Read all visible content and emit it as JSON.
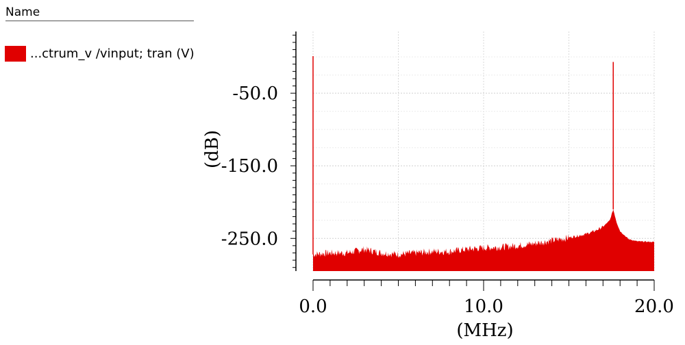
{
  "legend": {
    "header": "Name",
    "items": [
      {
        "label": "...ctrum_v /vinput; tran (V)",
        "color": "#e00000"
      }
    ]
  },
  "chart_data": {
    "type": "area",
    "xlabel": "(MHz)",
    "ylabel": "(dB)",
    "xlim": [
      0,
      20
    ],
    "ylim": [
      -295,
      35
    ],
    "x_ticks": [
      0.0,
      10.0,
      20.0
    ],
    "x_tick_labels": [
      "0.0",
      "10.0",
      "20.0"
    ],
    "y_ticks": [
      -50,
      -150,
      -250
    ],
    "y_tick_labels": [
      "-50.0",
      "-150.0",
      "-250.0"
    ],
    "grid": true,
    "series": [
      {
        "color": "#e00000",
        "noise_floor_points": [
          [
            0.0,
            -272
          ],
          [
            1.0,
            -270
          ],
          [
            2.0,
            -270
          ],
          [
            3.0,
            -265
          ],
          [
            4.0,
            -270
          ],
          [
            5.0,
            -272
          ],
          [
            6.0,
            -270
          ],
          [
            7.0,
            -268
          ],
          [
            8.0,
            -268
          ],
          [
            9.0,
            -265
          ],
          [
            10.0,
            -263
          ],
          [
            11.0,
            -262
          ],
          [
            12.0,
            -260
          ],
          [
            13.0,
            -257
          ],
          [
            14.0,
            -253
          ],
          [
            15.0,
            -249
          ],
          [
            16.0,
            -244
          ],
          [
            16.5,
            -240
          ],
          [
            17.0,
            -234
          ],
          [
            17.4,
            -225
          ],
          [
            17.6,
            -210
          ],
          [
            17.8,
            -228
          ],
          [
            18.0,
            -240
          ],
          [
            18.5,
            -251
          ],
          [
            19.0,
            -254
          ],
          [
            20.0,
            -255
          ]
        ],
        "peaks": [
          {
            "x": 0.0,
            "y": 1
          },
          {
            "x": 17.6,
            "y": -7
          }
        ]
      }
    ]
  }
}
